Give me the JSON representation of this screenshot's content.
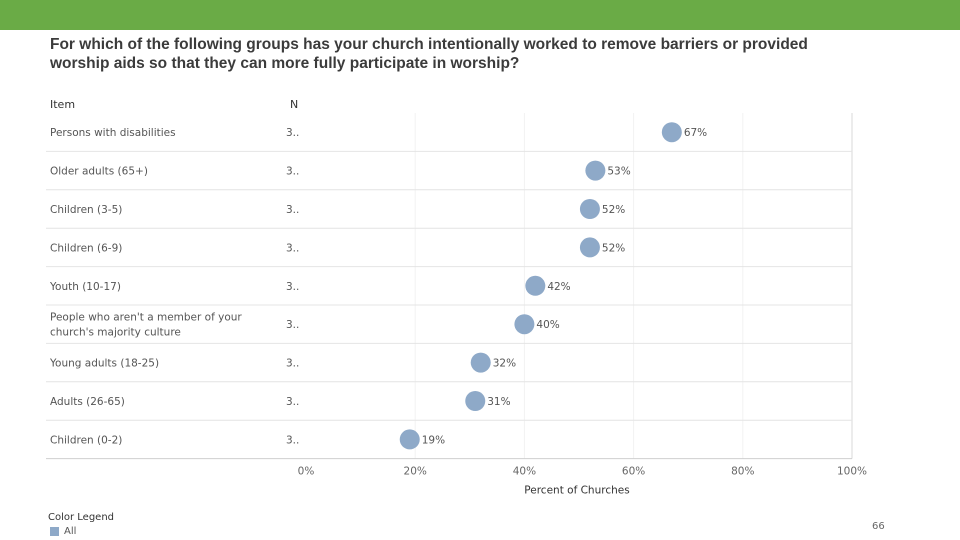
{
  "question": "For which of the following groups has your church intentionally worked to remove barriers or provided worship aids so that they can more fully participate in worship?",
  "headers": {
    "item": "Item",
    "n": "N"
  },
  "colors": {
    "topbar": "#6aab46",
    "marker": "#8ea9c8",
    "grid": "#e4e4e4"
  },
  "chart_data": {
    "type": "scatter",
    "categories": [
      "Persons with disabilities",
      "Older adults (65+)",
      "Children (3-5)",
      "Children (6-9)",
      "Youth (10-17)",
      "People who aren't a member of your church's majority culture",
      "Young adults (18-25)",
      "Adults (26-65)",
      "Children (0-2)"
    ],
    "category_lines": [
      [
        "Persons with disabilities"
      ],
      [
        "Older adults (65+)"
      ],
      [
        "Children (3-5)"
      ],
      [
        "Children (6-9)"
      ],
      [
        "Youth (10-17)"
      ],
      [
        "People who aren't a member of your",
        "church's majority culture"
      ],
      [
        "Young adults (18-25)"
      ],
      [
        "Adults (26-65)"
      ],
      [
        "Children (0-2)"
      ]
    ],
    "n_values": [
      "3..",
      "3..",
      "3..",
      "3..",
      "3..",
      "3..",
      "3..",
      "3..",
      "3.."
    ],
    "values": [
      67,
      53,
      52,
      52,
      42,
      40,
      32,
      31,
      19
    ],
    "value_labels": [
      "67%",
      "53%",
      "52%",
      "52%",
      "42%",
      "40%",
      "32%",
      "31%",
      "19%"
    ],
    "xlabel": "Percent of Churches",
    "xlim": [
      0,
      100
    ],
    "xticks": [
      0,
      20,
      40,
      60,
      80,
      100
    ],
    "xtick_labels": [
      "0%",
      "20%",
      "40%",
      "60%",
      "80%",
      "100%"
    ],
    "grid": true,
    "legend": {
      "title": "Color Legend",
      "items": [
        "All"
      ],
      "position": "bottom-left"
    }
  },
  "page_number": "66"
}
